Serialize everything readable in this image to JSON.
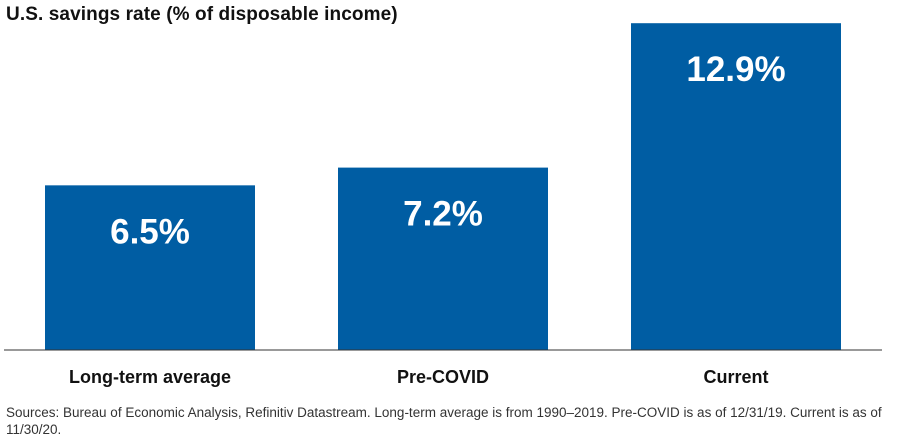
{
  "chart_data": {
    "type": "bar",
    "title": "U.S. savings rate (% of disposable income)",
    "categories": [
      "Long-term average",
      "Pre-COVID",
      "Current"
    ],
    "values": [
      6.5,
      7.2,
      12.9
    ],
    "data_labels": [
      "6.5%",
      "7.2%",
      "12.9%"
    ],
    "unit": "%",
    "ylim": [
      0,
      13.5
    ],
    "grid": false,
    "legend": "none",
    "bar_color": "#005DA3",
    "footnote": "Sources: Bureau of Economic Analysis, Refinitiv Datastream. Long-term average is from 1990–2019. Pre-COVID is as of 12/31/19. Current is as of 11/30/20."
  }
}
